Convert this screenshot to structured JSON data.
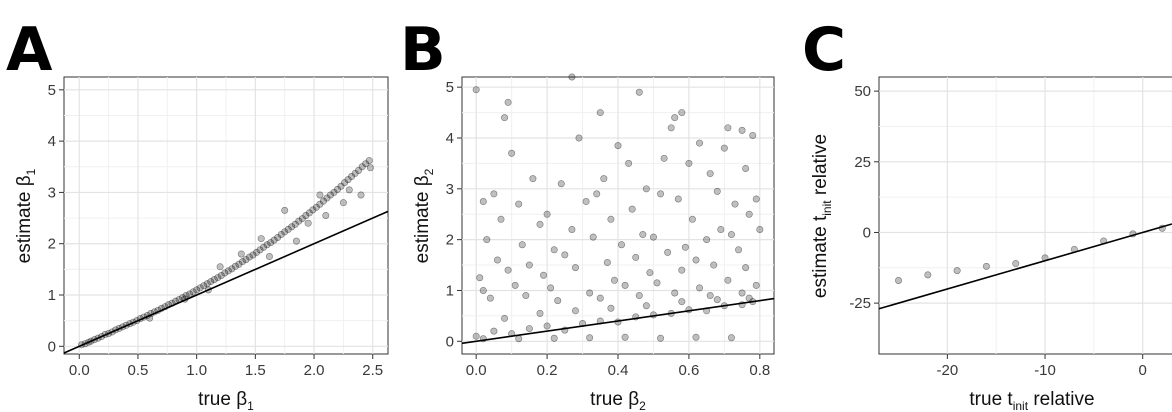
{
  "chart_data": [
    {
      "panel": "A",
      "type": "scatter",
      "xlabel": {
        "main": "true ",
        "symbol": "β",
        "sub": "1",
        "rest": ""
      },
      "ylabel": {
        "main": "estimate ",
        "symbol": "β",
        "sub": "1",
        "rest": ""
      },
      "xlim": [
        -0.13,
        2.63
      ],
      "ylim": [
        -0.15,
        5.25
      ],
      "xticks": [
        0.0,
        0.5,
        1.0,
        1.5,
        2.0,
        2.5
      ],
      "xtick_labels": [
        "0.0",
        "0.5",
        "1.0",
        "1.5",
        "2.0",
        "2.5"
      ],
      "yticks": [
        0,
        1,
        2,
        3,
        4,
        5
      ],
      "ytick_labels": [
        "0",
        "1",
        "2",
        "3",
        "4",
        "5"
      ],
      "grid": true,
      "reference_line": {
        "slope": 1,
        "intercept": 0
      },
      "points": [
        [
          0.02,
          0.03
        ],
        [
          0.05,
          0.05
        ],
        [
          0.08,
          0.08
        ],
        [
          0.1,
          0.1
        ],
        [
          0.13,
          0.13
        ],
        [
          0.16,
          0.16
        ],
        [
          0.19,
          0.19
        ],
        [
          0.22,
          0.23
        ],
        [
          0.25,
          0.25
        ],
        [
          0.28,
          0.28
        ],
        [
          0.31,
          0.32
        ],
        [
          0.34,
          0.35
        ],
        [
          0.37,
          0.38
        ],
        [
          0.4,
          0.41
        ],
        [
          0.43,
          0.44
        ],
        [
          0.46,
          0.47
        ],
        [
          0.49,
          0.5
        ],
        [
          0.52,
          0.54
        ],
        [
          0.55,
          0.57
        ],
        [
          0.58,
          0.6
        ],
        [
          0.61,
          0.64
        ],
        [
          0.64,
          0.67
        ],
        [
          0.67,
          0.7
        ],
        [
          0.7,
          0.74
        ],
        [
          0.73,
          0.77
        ],
        [
          0.76,
          0.81
        ],
        [
          0.79,
          0.84
        ],
        [
          0.82,
          0.88
        ],
        [
          0.85,
          0.91
        ],
        [
          0.88,
          0.95
        ],
        [
          0.91,
          0.99
        ],
        [
          0.94,
          1.02
        ],
        [
          0.97,
          1.06
        ],
        [
          1.0,
          1.1
        ],
        [
          1.03,
          1.14
        ],
        [
          1.06,
          1.18
        ],
        [
          1.09,
          1.22
        ],
        [
          1.12,
          1.26
        ],
        [
          1.15,
          1.3
        ],
        [
          1.18,
          1.34
        ],
        [
          1.21,
          1.38
        ],
        [
          1.24,
          1.43
        ],
        [
          1.27,
          1.47
        ],
        [
          1.3,
          1.51
        ],
        [
          1.33,
          1.56
        ],
        [
          1.36,
          1.6
        ],
        [
          1.39,
          1.65
        ],
        [
          1.42,
          1.69
        ],
        [
          1.45,
          1.74
        ],
        [
          1.48,
          1.78
        ],
        [
          1.51,
          1.83
        ],
        [
          1.54,
          1.88
        ],
        [
          1.57,
          1.93
        ],
        [
          1.6,
          1.98
        ],
        [
          1.63,
          2.02
        ],
        [
          1.66,
          2.07
        ],
        [
          1.69,
          2.12
        ],
        [
          1.72,
          2.18
        ],
        [
          1.75,
          2.23
        ],
        [
          1.78,
          2.28
        ],
        [
          1.81,
          2.33
        ],
        [
          1.84,
          2.38
        ],
        [
          1.87,
          2.44
        ],
        [
          1.9,
          2.49
        ],
        [
          1.93,
          2.55
        ],
        [
          1.96,
          2.6
        ],
        [
          1.99,
          2.66
        ],
        [
          2.02,
          2.71
        ],
        [
          2.05,
          2.77
        ],
        [
          2.08,
          2.83
        ],
        [
          2.11,
          2.89
        ],
        [
          2.14,
          2.95
        ],
        [
          2.17,
          3.0
        ],
        [
          2.2,
          3.06
        ],
        [
          2.23,
          3.12
        ],
        [
          2.26,
          3.19
        ],
        [
          2.29,
          3.25
        ],
        [
          2.32,
          3.31
        ],
        [
          2.35,
          3.37
        ],
        [
          2.38,
          3.43
        ],
        [
          2.41,
          3.5
        ],
        [
          2.44,
          3.56
        ],
        [
          2.47,
          3.62
        ],
        [
          1.2,
          1.55
        ],
        [
          1.38,
          1.8
        ],
        [
          1.55,
          2.1
        ],
        [
          1.75,
          2.65
        ],
        [
          1.95,
          2.4
        ],
        [
          2.1,
          2.55
        ],
        [
          2.25,
          2.8
        ],
        [
          2.4,
          2.95
        ],
        [
          2.48,
          3.48
        ],
        [
          1.62,
          1.75
        ],
        [
          1.85,
          2.05
        ],
        [
          2.05,
          2.95
        ],
        [
          2.3,
          3.05
        ],
        [
          0.6,
          0.55
        ],
        [
          0.9,
          0.92
        ],
        [
          1.1,
          1.1
        ]
      ]
    },
    {
      "panel": "B",
      "type": "scatter",
      "xlabel": {
        "main": "true ",
        "symbol": "β",
        "sub": "2",
        "rest": ""
      },
      "ylabel": {
        "main": "estimate ",
        "symbol": "β",
        "sub": "2",
        "rest": ""
      },
      "xlim": [
        -0.04,
        0.84
      ],
      "ylim": [
        -0.25,
        5.2
      ],
      "xticks": [
        0.0,
        0.2,
        0.4,
        0.6,
        0.8
      ],
      "xtick_labels": [
        "0.0",
        "0.2",
        "0.4",
        "0.6",
        "0.8"
      ],
      "yticks": [
        0,
        1,
        2,
        3,
        4,
        5
      ],
      "ytick_labels": [
        "0",
        "1",
        "2",
        "3",
        "4",
        "5"
      ],
      "grid": true,
      "reference_line": {
        "slope": 1,
        "intercept": 0
      },
      "points": [
        [
          0.0,
          4.95
        ],
        [
          0.09,
          4.7
        ],
        [
          0.08,
          4.4
        ],
        [
          0.27,
          5.2
        ],
        [
          0.35,
          4.5
        ],
        [
          0.46,
          4.9
        ],
        [
          0.56,
          4.4
        ],
        [
          0.58,
          4.5
        ],
        [
          0.55,
          4.2
        ],
        [
          0.71,
          4.2
        ],
        [
          0.75,
          4.15
        ],
        [
          0.78,
          4.05
        ],
        [
          0.53,
          3.6
        ],
        [
          0.1,
          3.7
        ],
        [
          0.29,
          4.0
        ],
        [
          0.4,
          3.85
        ],
        [
          0.43,
          3.5
        ],
        [
          0.6,
          3.5
        ],
        [
          0.66,
          3.3
        ],
        [
          0.7,
          3.8
        ],
        [
          0.76,
          3.4
        ],
        [
          0.63,
          3.9
        ],
        [
          0.48,
          3.0
        ],
        [
          0.36,
          3.2
        ],
        [
          0.34,
          2.9
        ],
        [
          0.24,
          3.1
        ],
        [
          0.16,
          3.2
        ],
        [
          0.05,
          2.9
        ],
        [
          0.12,
          2.7
        ],
        [
          0.2,
          2.5
        ],
        [
          0.31,
          2.75
        ],
        [
          0.44,
          2.6
        ],
        [
          0.52,
          2.9
        ],
        [
          0.57,
          2.8
        ],
        [
          0.68,
          2.95
        ],
        [
          0.73,
          2.7
        ],
        [
          0.79,
          2.8
        ],
        [
          0.02,
          2.75
        ],
        [
          0.07,
          2.4
        ],
        [
          0.18,
          2.3
        ],
        [
          0.27,
          2.2
        ],
        [
          0.38,
          2.4
        ],
        [
          0.47,
          2.1
        ],
        [
          0.61,
          2.4
        ],
        [
          0.69,
          2.2
        ],
        [
          0.77,
          2.5
        ],
        [
          0.03,
          2.0
        ],
        [
          0.13,
          1.9
        ],
        [
          0.22,
          1.8
        ],
        [
          0.33,
          2.05
        ],
        [
          0.41,
          1.9
        ],
        [
          0.5,
          2.05
        ],
        [
          0.59,
          1.85
        ],
        [
          0.65,
          2.0
        ],
        [
          0.72,
          2.1
        ],
        [
          0.8,
          2.2
        ],
        [
          0.06,
          1.6
        ],
        [
          0.15,
          1.5
        ],
        [
          0.25,
          1.7
        ],
        [
          0.37,
          1.55
        ],
        [
          0.45,
          1.65
        ],
        [
          0.54,
          1.75
        ],
        [
          0.62,
          1.6
        ],
        [
          0.74,
          1.8
        ],
        [
          0.01,
          1.25
        ],
        [
          0.09,
          1.4
        ],
        [
          0.19,
          1.3
        ],
        [
          0.28,
          1.45
        ],
        [
          0.39,
          1.2
        ],
        [
          0.49,
          1.35
        ],
        [
          0.58,
          1.4
        ],
        [
          0.67,
          1.5
        ],
        [
          0.76,
          1.45
        ],
        [
          0.02,
          1.0
        ],
        [
          0.11,
          1.1
        ],
        [
          0.21,
          1.05
        ],
        [
          0.32,
          0.95
        ],
        [
          0.42,
          1.1
        ],
        [
          0.51,
          1.15
        ],
        [
          0.63,
          1.05
        ],
        [
          0.71,
          1.2
        ],
        [
          0.79,
          1.1
        ],
        [
          0.04,
          0.85
        ],
        [
          0.14,
          0.9
        ],
        [
          0.23,
          0.8
        ],
        [
          0.35,
          0.85
        ],
        [
          0.46,
          0.9
        ],
        [
          0.56,
          0.95
        ],
        [
          0.66,
          0.9
        ],
        [
          0.75,
          0.95
        ],
        [
          0.0,
          0.1
        ],
        [
          0.05,
          0.2
        ],
        [
          0.1,
          0.15
        ],
        [
          0.15,
          0.25
        ],
        [
          0.2,
          0.3
        ],
        [
          0.25,
          0.22
        ],
        [
          0.3,
          0.35
        ],
        [
          0.35,
          0.4
        ],
        [
          0.4,
          0.38
        ],
        [
          0.45,
          0.48
        ],
        [
          0.5,
          0.52
        ],
        [
          0.55,
          0.55
        ],
        [
          0.6,
          0.62
        ],
        [
          0.65,
          0.6
        ],
        [
          0.7,
          0.7
        ],
        [
          0.75,
          0.72
        ],
        [
          0.78,
          0.78
        ],
        [
          0.02,
          0.05
        ],
        [
          0.12,
          0.05
        ],
        [
          0.22,
          0.06
        ],
        [
          0.32,
          0.07
        ],
        [
          0.42,
          0.08
        ],
        [
          0.52,
          0.06
        ],
        [
          0.62,
          0.08
        ],
        [
          0.72,
          0.07
        ],
        [
          0.08,
          0.45
        ],
        [
          0.18,
          0.55
        ],
        [
          0.28,
          0.6
        ],
        [
          0.38,
          0.65
        ],
        [
          0.48,
          0.7
        ],
        [
          0.58,
          0.78
        ],
        [
          0.68,
          0.82
        ],
        [
          0.77,
          0.85
        ]
      ]
    },
    {
      "panel": "C",
      "type": "scatter",
      "xlabel": {
        "main": "true t",
        "symbol": "",
        "sub": "init",
        "rest": " relative"
      },
      "ylabel": {
        "main": "estimate t",
        "symbol": "",
        "sub": "init",
        "rest": " relative"
      },
      "xlim": [
        -27,
        3
      ],
      "ylim": [
        -43,
        55
      ],
      "xticks": [
        -20,
        -10,
        0
      ],
      "xtick_labels": [
        "-20",
        "-10",
        "0"
      ],
      "yticks": [
        -25,
        0,
        25,
        50
      ],
      "ytick_labels": [
        "-25",
        "0",
        "25",
        "50"
      ],
      "grid": true,
      "reference_line": {
        "slope": 1,
        "intercept": 0
      },
      "points": [
        [
          -25,
          -17
        ],
        [
          -22,
          -15
        ],
        [
          -19,
          -13.5
        ],
        [
          -16,
          -12
        ],
        [
          -13,
          -11
        ],
        [
          -10,
          -9
        ],
        [
          -7,
          -6
        ],
        [
          -4,
          -3
        ],
        [
          -1,
          -0.5
        ],
        [
          2,
          1.5
        ]
      ]
    }
  ],
  "panels": {
    "A": {
      "letter": "A"
    },
    "B": {
      "letter": "B"
    },
    "C": {
      "letter": "C"
    }
  }
}
